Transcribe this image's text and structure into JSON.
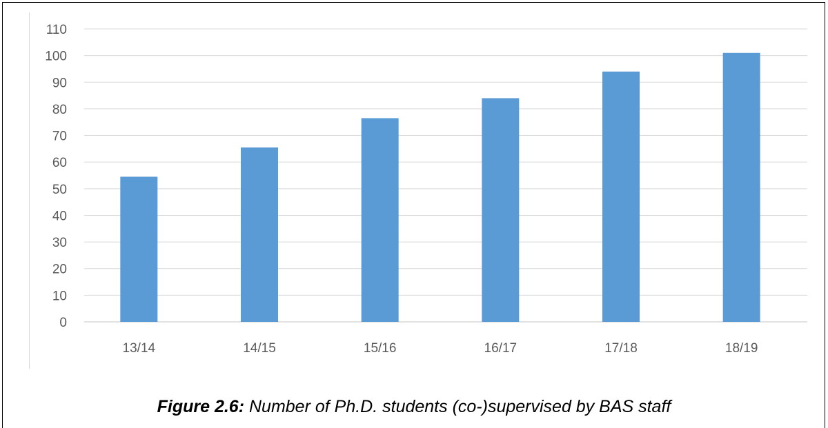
{
  "chart_data": {
    "type": "bar",
    "categories": [
      "13/14",
      "14/15",
      "15/16",
      "16/17",
      "17/18",
      "18/19"
    ],
    "values": [
      54.5,
      65.5,
      76.5,
      84,
      94,
      101
    ],
    "title": "",
    "xlabel": "",
    "ylabel": "",
    "ylim": [
      0,
      110
    ],
    "yticks": [
      0,
      10,
      20,
      30,
      40,
      50,
      60,
      70,
      80,
      90,
      100,
      110
    ],
    "grid": true,
    "legend": "none",
    "bar_color": "#5b9bd5",
    "grid_color": "#d9d9d9"
  },
  "caption": {
    "label": "Figure 2.6:",
    "text": " Number of Ph.D. students (co-)supervised by BAS staff"
  }
}
